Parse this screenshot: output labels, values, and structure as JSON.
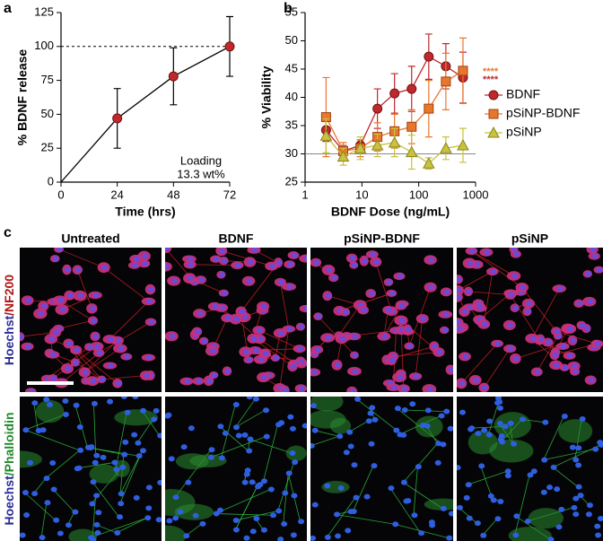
{
  "panel_labels": [
    "a",
    "b",
    "c"
  ],
  "chart_data": [
    {
      "type": "line",
      "x": [
        0,
        24,
        48,
        72
      ],
      "values": [
        0,
        47,
        78,
        100
      ],
      "errors": [
        0,
        22,
        21,
        22
      ],
      "color": "#c0282d",
      "marker": "circle",
      "xlim": [
        0,
        72
      ],
      "xticks": [
        0,
        24,
        48,
        72
      ],
      "ylim": [
        0,
        125
      ],
      "yticks": [
        0,
        25,
        50,
        75,
        100,
        125
      ],
      "xlabel": "Time (hrs)",
      "ylabel": "% BDNF release",
      "reference_line": 100,
      "annotation": [
        "Loading",
        "13.3 wt%"
      ]
    },
    {
      "type": "line",
      "xscale": "log",
      "x": [
        2.34,
        4.69,
        9.38,
        18.75,
        37.5,
        75,
        150,
        300,
        600
      ],
      "xlim": [
        1,
        1000
      ],
      "xticks": [
        1,
        10,
        100,
        1000
      ],
      "ylim": [
        25,
        55
      ],
      "yticks": [
        25,
        30,
        35,
        40,
        45,
        50,
        55
      ],
      "xlabel": "BDNF Dose (ng/mL)",
      "ylabel": "% Viability",
      "reference_line": 30,
      "legend": "right",
      "series": [
        {
          "name": "BDNF",
          "color": "#c0282d",
          "marker": "circle",
          "values": [
            34.2,
            30.5,
            31.5,
            38.0,
            40.7,
            41.5,
            47.2,
            45.5,
            43.5
          ],
          "errors": [
            2,
            1,
            1,
            3.5,
            3.5,
            4,
            4,
            4,
            4.5
          ]
        },
        {
          "name": "pSiNP-BDNF",
          "color": "#e8772e",
          "marker": "square",
          "values": [
            36.5,
            30.5,
            31.0,
            33.0,
            34.0,
            34.8,
            38.0,
            42.8,
            44.7
          ],
          "errors": [
            7,
            1.5,
            1.5,
            2.5,
            3,
            3,
            5,
            5,
            5.8
          ]
        },
        {
          "name": "pSiNP",
          "color": "#c8c23c",
          "marker": "triangle",
          "values": [
            33.2,
            29.5,
            31.0,
            31.5,
            32.0,
            30.3,
            28.3,
            31.0,
            31.5
          ],
          "errors": [
            3,
            1.5,
            2,
            2,
            2.5,
            3,
            1,
            2,
            3
          ]
        }
      ],
      "significance": [
        {
          "text": "****",
          "color": "#e8772e"
        },
        {
          "text": "****",
          "color": "#c0282d"
        }
      ]
    }
  ],
  "images": {
    "columns": [
      "Untreated",
      "BDNF",
      "pSiNP-BDNF",
      "pSiNP"
    ],
    "rows": [
      [
        {
          "text": "Hoechst",
          "color": "#2a2a9a"
        },
        {
          "text": "/NF200",
          "color": "#b01818"
        }
      ],
      [
        {
          "text": "Hoechst",
          "color": "#2a2a9a"
        },
        {
          "text": "/Phalloidin",
          "color": "#1f8a2a"
        }
      ]
    ]
  }
}
